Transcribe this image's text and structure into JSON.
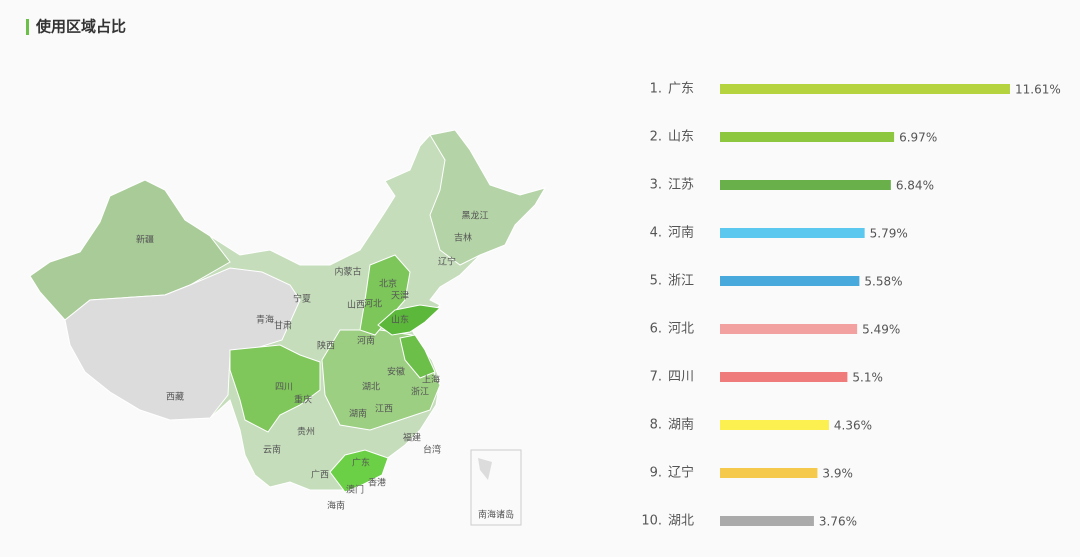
{
  "header": {
    "title": "使用区域占比"
  },
  "map": {
    "labels": [
      "新疆",
      "西藏",
      "青海",
      "甘肃",
      "宁夏",
      "内蒙古",
      "陕西",
      "山西",
      "河北",
      "北京",
      "天津",
      "辽宁",
      "吉林",
      "黑龙江",
      "山东",
      "河南",
      "四川",
      "重庆",
      "湖北",
      "安徽",
      "上海",
      "浙江",
      "江西",
      "湖南",
      "贵州",
      "云南",
      "广西",
      "广东",
      "福建",
      "台湾",
      "香港",
      "澳门",
      "海南"
    ],
    "inset_label": "南海诸岛"
  },
  "chart_data": {
    "type": "bar",
    "orientation": "horizontal",
    "ranks": [
      "1.",
      "2.",
      "3.",
      "4.",
      "5.",
      "6.",
      "7.",
      "8.",
      "9.",
      "10."
    ],
    "categories": [
      "广东",
      "山东",
      "江苏",
      "河南",
      "浙江",
      "河北",
      "四川",
      "湖南",
      "辽宁",
      "湖北"
    ],
    "values": [
      11.61,
      6.97,
      6.84,
      5.79,
      5.58,
      5.49,
      5.1,
      4.36,
      3.9,
      3.76
    ],
    "value_labels": [
      "11.61%",
      "6.97%",
      "6.84%",
      "5.79%",
      "5.58%",
      "5.49%",
      "5.1%",
      "4.36%",
      "3.9%",
      "3.76%"
    ],
    "colors": [
      "#b5d33e",
      "#8dc63f",
      "#6ab04a",
      "#5bc8ef",
      "#48a9dc",
      "#f3a1a0",
      "#ef7b7b",
      "#fbf04f",
      "#f5c94b",
      "#aaaaaa"
    ]
  }
}
